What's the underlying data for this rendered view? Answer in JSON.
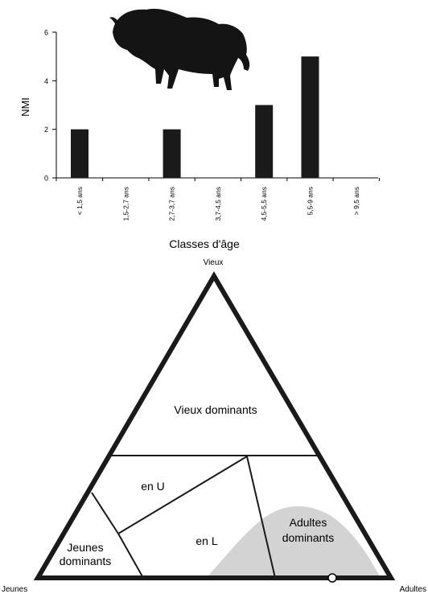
{
  "chart_data": [
    {
      "type": "bar",
      "xlabel": "Classes d'âge",
      "ylabel": "NMI",
      "ylim": [
        0,
        6
      ],
      "yticks": [
        0,
        2,
        4,
        6
      ],
      "categories": [
        "< 1,5 ans",
        "1,5-2,7 ans",
        "2,7-3,7 ans",
        "3,7-4,5 ans",
        "4,5-5,5 ans",
        "5,5-9 ans",
        "> 9,5 ans"
      ],
      "values": [
        2,
        0,
        2,
        0,
        3,
        5,
        0
      ],
      "bar_color": "#1a1a1a",
      "grid": false,
      "decoration_icon": "bison-silhouette-icon"
    },
    {
      "type": "ternary",
      "vertices": {
        "top": "Vieux",
        "left": "Jeunes",
        "right": "Adultes"
      },
      "zones": [
        {
          "label": "Vieux dominants"
        },
        {
          "label": "en U"
        },
        {
          "label": "en L"
        },
        {
          "label_lines": [
            "Jeunes",
            "dominants"
          ]
        },
        {
          "label_lines": [
            "Adultes",
            "dominants"
          ],
          "fill": "#d3d3d3"
        }
      ],
      "line_color": "#1a1a1a"
    }
  ]
}
